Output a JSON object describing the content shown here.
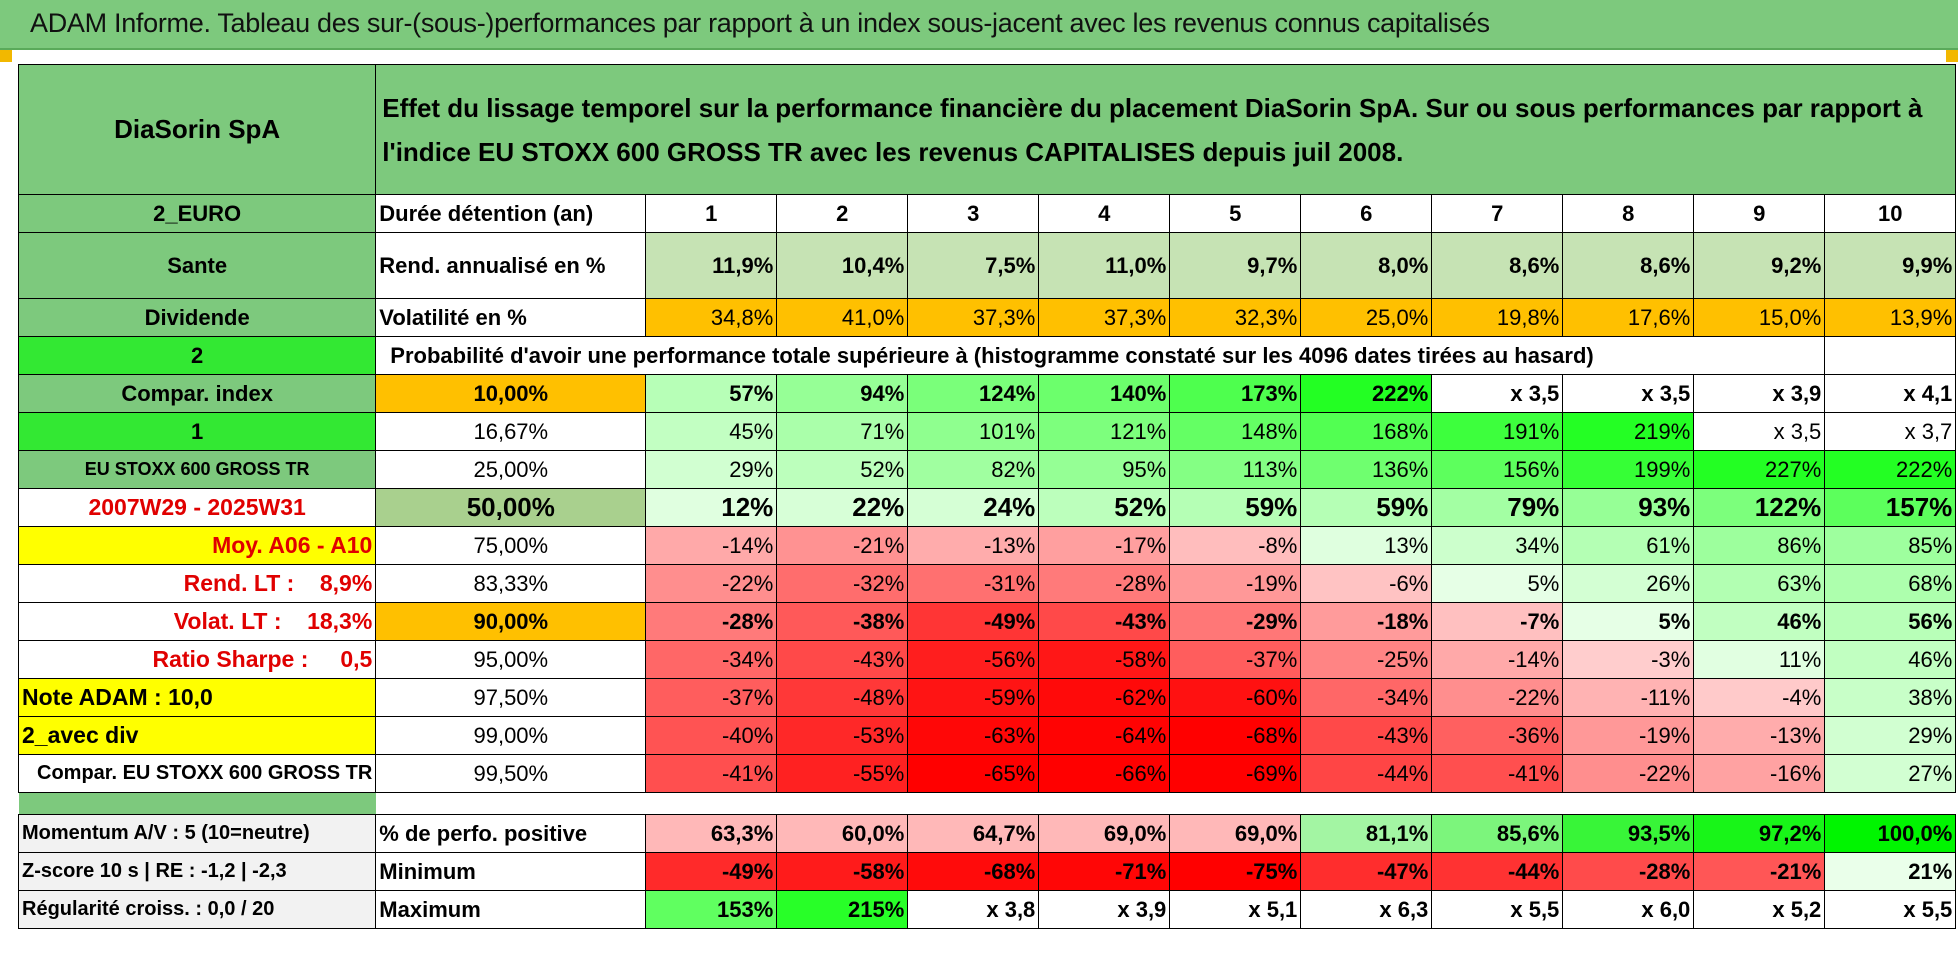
{
  "title": "ADAM Informe. Tableau des sur-(sous-)performances par rapport à un index sous-jacent avec les revenus connus capitalisés",
  "header": {
    "company": "DiaSorin SpA",
    "description": "Effet du lissage temporel sur la performance financière du placement DiaSorin SpA. Sur ou sous performances par rapport à l'indice EU STOXX 600 GROSS TR avec les revenus CAPITALISES depuis juil 2008."
  },
  "left": {
    "currency": "2_EURO",
    "sector": "Sante",
    "dividend": "Dividende",
    "num2": "2",
    "compar_index": "Compar. index",
    "num1": "1",
    "index_name": "EU STOXX 600 GROSS TR",
    "period": "2007W29 - 2025W31",
    "moy": "Moy. A06 - A10",
    "rend_lt": "Rend. LT :    8,9%",
    "volat_lt": "Volat. LT :    18,3%",
    "sharpe": "Ratio Sharpe :     0,5",
    "note_adam": "Note ADAM : 10,0",
    "avec_div": "2_avec div",
    "compar_full": "Compar. EU STOXX 600 GROSS TR",
    "momentum": "Momentum A/V : 5 (10=neutre)",
    "zscore": "Z-score 10 s | RE : -1,2 | -2,3",
    "regularite": "Régularité croiss. : 0,0 / 20"
  },
  "durations_label": "Durée détention (an)",
  "durations": [
    "1",
    "2",
    "3",
    "4",
    "5",
    "6",
    "7",
    "8",
    "9",
    "10"
  ],
  "rend_label": "Rend. annualisé en %",
  "rend": [
    "11,9%",
    "10,4%",
    "7,5%",
    "11,0%",
    "9,7%",
    "8,0%",
    "8,6%",
    "8,6%",
    "9,2%",
    "9,9%"
  ],
  "vol_label": "Volatilité en %",
  "vol": [
    "34,8%",
    "41,0%",
    "37,3%",
    "37,3%",
    "32,3%",
    "25,0%",
    "19,8%",
    "17,6%",
    "15,0%",
    "13,9%"
  ],
  "prob_header": "Probabilité d'avoir une performance totale supérieure à (histogramme constaté sur les 4096 dates tirées au hasard)",
  "prob_rows": [
    {
      "p": "10,00%",
      "v": [
        "57%",
        "94%",
        "124%",
        "140%",
        "173%",
        "222%",
        "x 3,5",
        "x 3,5",
        "x 3,9",
        "x 4,1"
      ]
    },
    {
      "p": "16,67%",
      "v": [
        "45%",
        "71%",
        "101%",
        "121%",
        "148%",
        "168%",
        "191%",
        "219%",
        "x 3,5",
        "x 3,7"
      ]
    },
    {
      "p": "25,00%",
      "v": [
        "29%",
        "52%",
        "82%",
        "95%",
        "113%",
        "136%",
        "156%",
        "199%",
        "227%",
        "222%"
      ]
    },
    {
      "p": "50,00%",
      "v": [
        "12%",
        "22%",
        "24%",
        "52%",
        "59%",
        "59%",
        "79%",
        "93%",
        "122%",
        "157%"
      ]
    },
    {
      "p": "75,00%",
      "v": [
        "-14%",
        "-21%",
        "-13%",
        "-17%",
        "-8%",
        "13%",
        "34%",
        "61%",
        "86%",
        "85%"
      ]
    },
    {
      "p": "83,33%",
      "v": [
        "-22%",
        "-32%",
        "-31%",
        "-28%",
        "-19%",
        "-6%",
        "5%",
        "26%",
        "63%",
        "68%"
      ]
    },
    {
      "p": "90,00%",
      "v": [
        "-28%",
        "-38%",
        "-49%",
        "-43%",
        "-29%",
        "-18%",
        "-7%",
        "5%",
        "46%",
        "56%"
      ]
    },
    {
      "p": "95,00%",
      "v": [
        "-34%",
        "-43%",
        "-56%",
        "-58%",
        "-37%",
        "-25%",
        "-14%",
        "-3%",
        "11%",
        "46%"
      ]
    },
    {
      "p": "97,50%",
      "v": [
        "-37%",
        "-48%",
        "-59%",
        "-62%",
        "-60%",
        "-34%",
        "-22%",
        "-11%",
        "-4%",
        "38%"
      ]
    },
    {
      "p": "99,00%",
      "v": [
        "-40%",
        "-53%",
        "-63%",
        "-64%",
        "-68%",
        "-43%",
        "-36%",
        "-19%",
        "-13%",
        "29%"
      ]
    },
    {
      "p": "99,50%",
      "v": [
        "-41%",
        "-55%",
        "-65%",
        "-66%",
        "-69%",
        "-44%",
        "-41%",
        "-22%",
        "-16%",
        "27%"
      ]
    }
  ],
  "pos_label": "% de perfo. positive",
  "pos": [
    "63,3%",
    "60,0%",
    "64,7%",
    "69,0%",
    "69,0%",
    "81,1%",
    "85,6%",
    "93,5%",
    "97,2%",
    "100,0%"
  ],
  "min_label": "Minimum",
  "min": [
    "-49%",
    "-58%",
    "-68%",
    "-71%",
    "-75%",
    "-47%",
    "-44%",
    "-28%",
    "-21%",
    "21%"
  ],
  "max_label": "Maximum",
  "max": [
    "153%",
    "215%",
    "x 3,8",
    "x 3,9",
    "x 5,1",
    "x 6,3",
    "x 5,5",
    "x 6,0",
    "x 5,2",
    "x 5,5"
  ]
}
